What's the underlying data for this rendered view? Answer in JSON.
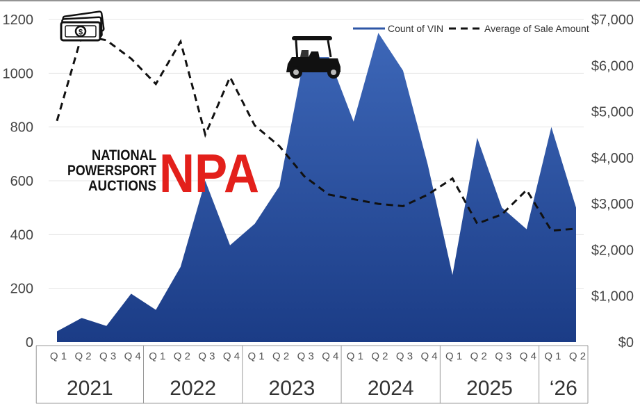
{
  "chart_data": {
    "type": "area+line",
    "categories": [
      "Q1",
      "Q2",
      "Q3",
      "Q4",
      "Q1",
      "Q2",
      "Q3",
      "Q4",
      "Q1",
      "Q2",
      "Q3",
      "Q4",
      "Q1",
      "Q2",
      "Q3",
      "Q4",
      "Q1",
      "Q2",
      "Q3",
      "Q4",
      "Q1",
      "Q2"
    ],
    "quarter_labels": [
      "Q 1",
      "Q 2",
      "Q 3",
      "Q 4",
      "Q 1",
      "Q 2",
      "Q 3",
      "Q 4",
      "Q 1",
      "Q 2",
      "Q 3",
      "Q 4",
      "Q 1",
      "Q 2",
      "Q 3",
      "Q 4",
      "Q 1",
      "Q 2",
      "Q 3",
      "Q 4",
      "Q 1",
      "Q 2"
    ],
    "years": [
      {
        "label": "2021",
        "start": 0,
        "end": 3
      },
      {
        "label": "2022",
        "start": 4,
        "end": 7
      },
      {
        "label": "2023",
        "start": 8,
        "end": 11
      },
      {
        "label": "2024",
        "start": 12,
        "end": 15
      },
      {
        "label": "2025",
        "start": 16,
        "end": 19
      },
      {
        "label": "‘26",
        "start": 20,
        "end": 21
      }
    ],
    "series": [
      {
        "name": "Count of VIN",
        "kind": "area",
        "axis": "left",
        "color": "#2d56a6",
        "values": [
          40,
          90,
          60,
          180,
          120,
          280,
          600,
          360,
          440,
          580,
          1060,
          1060,
          820,
          1150,
          1010,
          660,
          250,
          760,
          500,
          420,
          800,
          500
        ]
      },
      {
        "name": "Average of Sale Amount",
        "kind": "line",
        "axis": "right",
        "color": "#111111",
        "values": [
          4800,
          6650,
          6550,
          6150,
          5600,
          6520,
          4500,
          5750,
          4700,
          4250,
          3600,
          3200,
          3100,
          3000,
          2950,
          3200,
          3550,
          2570,
          2770,
          3300,
          2420,
          2460
        ]
      }
    ],
    "y_left": {
      "min": 0,
      "max": 1200,
      "ticks": [
        0,
        200,
        400,
        600,
        800,
        1000,
        1200
      ],
      "tick_labels": [
        "0",
        "200",
        "400",
        "600",
        "800",
        "1000",
        "1200"
      ]
    },
    "y_right": {
      "min": 0,
      "max": 7000,
      "ticks": [
        0,
        1000,
        2000,
        3000,
        4000,
        5000,
        6000,
        7000
      ],
      "tick_labels": [
        "$0",
        "$1,000",
        "$2,000",
        "$3,000",
        "$4,000",
        "$5,000",
        "$6,000",
        "$7,000"
      ]
    },
    "grid": true,
    "legend": "top-right"
  },
  "logo": {
    "line1": "NATIONAL",
    "line2": "POWERSPORT",
    "line3": "AUCTIONS",
    "mark": "NPA"
  },
  "icons": [
    "money-stack-icon",
    "golf-cart-icon"
  ],
  "colors": {
    "area_top": "#3d67b8",
    "area_bottom": "#1b3c86",
    "logo_red": "#e3201b"
  }
}
